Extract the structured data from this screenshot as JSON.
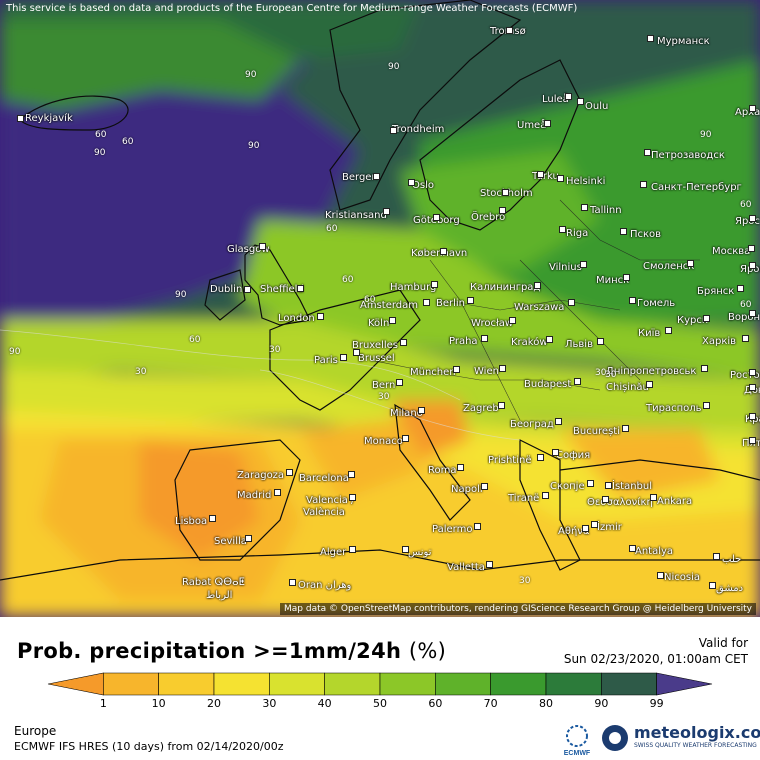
{
  "map": {
    "attribution_top": "This service is based on data and products of the European Centre for Medium-range Weather Forecasts (ECMWF)",
    "attribution_bottom": "Map data © OpenStreetMap contributors, rendering GIScience Research Group @ Heidelberg University",
    "cities": [
      {
        "name": "Tromsø"
      },
      {
        "name": "Мурманск"
      },
      {
        "name": "Reykjavík"
      },
      {
        "name": "Luleå"
      },
      {
        "name": "Oulu"
      },
      {
        "name": "Арха"
      },
      {
        "name": "Umeå"
      },
      {
        "name": "Trondheim"
      },
      {
        "name": "Петрозаводск"
      },
      {
        "name": "Bergen"
      },
      {
        "name": "Turku"
      },
      {
        "name": "Helsinki"
      },
      {
        "name": "Oslo"
      },
      {
        "name": "Stockholm"
      },
      {
        "name": "Санкт-Петербург"
      },
      {
        "name": "Kristiansand"
      },
      {
        "name": "Göteborg"
      },
      {
        "name": "Örebro"
      },
      {
        "name": "Tallinn"
      },
      {
        "name": "Ярос"
      },
      {
        "name": "Псков"
      },
      {
        "name": "Riga"
      },
      {
        "name": "Glasgow"
      },
      {
        "name": "København"
      },
      {
        "name": "Москва"
      },
      {
        "name": "Vilnius"
      },
      {
        "name": "Смоленск"
      },
      {
        "name": "Яросл"
      },
      {
        "name": "Dublin"
      },
      {
        "name": "Sheffield"
      },
      {
        "name": "Hamburg"
      },
      {
        "name": "Калининград"
      },
      {
        "name": "Минск"
      },
      {
        "name": "Брянск"
      },
      {
        "name": "Amsterdam"
      },
      {
        "name": "Berlin"
      },
      {
        "name": "Warszawa"
      },
      {
        "name": "Гомель"
      },
      {
        "name": "London"
      },
      {
        "name": "Köln"
      },
      {
        "name": "Wrocław"
      },
      {
        "name": "Курск"
      },
      {
        "name": "Ворон"
      },
      {
        "name": "Bruxelles"
      },
      {
        "name": "Brussel"
      },
      {
        "name": "Praha"
      },
      {
        "name": "Kraków"
      },
      {
        "name": "Львів"
      },
      {
        "name": "Київ"
      },
      {
        "name": "Харків"
      },
      {
        "name": "Paris"
      },
      {
        "name": "München"
      },
      {
        "name": "Wien"
      },
      {
        "name": "Дніпропетровськ"
      },
      {
        "name": "Росто"
      },
      {
        "name": "Bern"
      },
      {
        "name": "Budapest"
      },
      {
        "name": "Chișinău"
      },
      {
        "name": "Донец"
      },
      {
        "name": "Milano"
      },
      {
        "name": "Zagreb"
      },
      {
        "name": "Тирасполь"
      },
      {
        "name": "Красно"
      },
      {
        "name": "Monaco"
      },
      {
        "name": "Београд"
      },
      {
        "name": "București"
      },
      {
        "name": "Пять"
      },
      {
        "name": "Roma"
      },
      {
        "name": "Prishtinë"
      },
      {
        "name": "София"
      },
      {
        "name": "Zaragoza"
      },
      {
        "name": "Barcelona"
      },
      {
        "name": "Napoli"
      },
      {
        "name": "Скопје"
      },
      {
        "name": "İstanbul"
      },
      {
        "name": "Madrid"
      },
      {
        "name": "Valencia /"
      },
      {
        "name": "València"
      },
      {
        "name": "Tiranë"
      },
      {
        "name": "Θεσσαλονίκη"
      },
      {
        "name": "Ankara"
      },
      {
        "name": "Lisboa"
      },
      {
        "name": "Αθήνα"
      },
      {
        "name": "İzmir"
      },
      {
        "name": "Sevilla"
      },
      {
        "name": "Palermo"
      },
      {
        "name": "Antalya"
      },
      {
        "name": "Alger"
      },
      {
        "name": "تونس"
      },
      {
        "name": "حلب"
      },
      {
        "name": "Valletta"
      },
      {
        "name": "Nicosia"
      },
      {
        "name": "Rabat ⵕⴱⴰⵟ"
      },
      {
        "name": "الرباط"
      },
      {
        "name": "Oran وهران"
      },
      {
        "name": "دمشق"
      }
    ],
    "contour_labels": [
      "90",
      "90",
      "60",
      "90",
      "90",
      "60",
      "60",
      "90",
      "90",
      "60",
      "30",
      "60",
      "60",
      "30",
      "30",
      "30",
      "30",
      "30",
      "60",
      "60",
      "90"
    ]
  },
  "legend": {
    "title_main": "Prob. precipitation >=1mm/24h",
    "title_unit": "(%)",
    "valid_label": "Valid for",
    "valid_date": "Sun 02/23/2020, 01:00am CET",
    "ticks": [
      "1",
      "10",
      "20",
      "30",
      "40",
      "50",
      "60",
      "70",
      "80",
      "90",
      "99"
    ],
    "colors": [
      "#f59a2a",
      "#f7b52c",
      "#f8cc2e",
      "#f5e231",
      "#d9e22f",
      "#b4d62c",
      "#8cc728",
      "#5fb22a",
      "#3a9a2e",
      "#2c7b3a",
      "#2e5a48",
      "#4a3b8a"
    ],
    "region": "Europe",
    "model": "ECMWF IFS HRES (10 days) from 02/14/2020/00z"
  },
  "branding": {
    "ecmwf": "ECMWF",
    "meteologix": "meteologix.com",
    "tagline": "SWISS QUALITY WEATHER FORECASTING"
  }
}
